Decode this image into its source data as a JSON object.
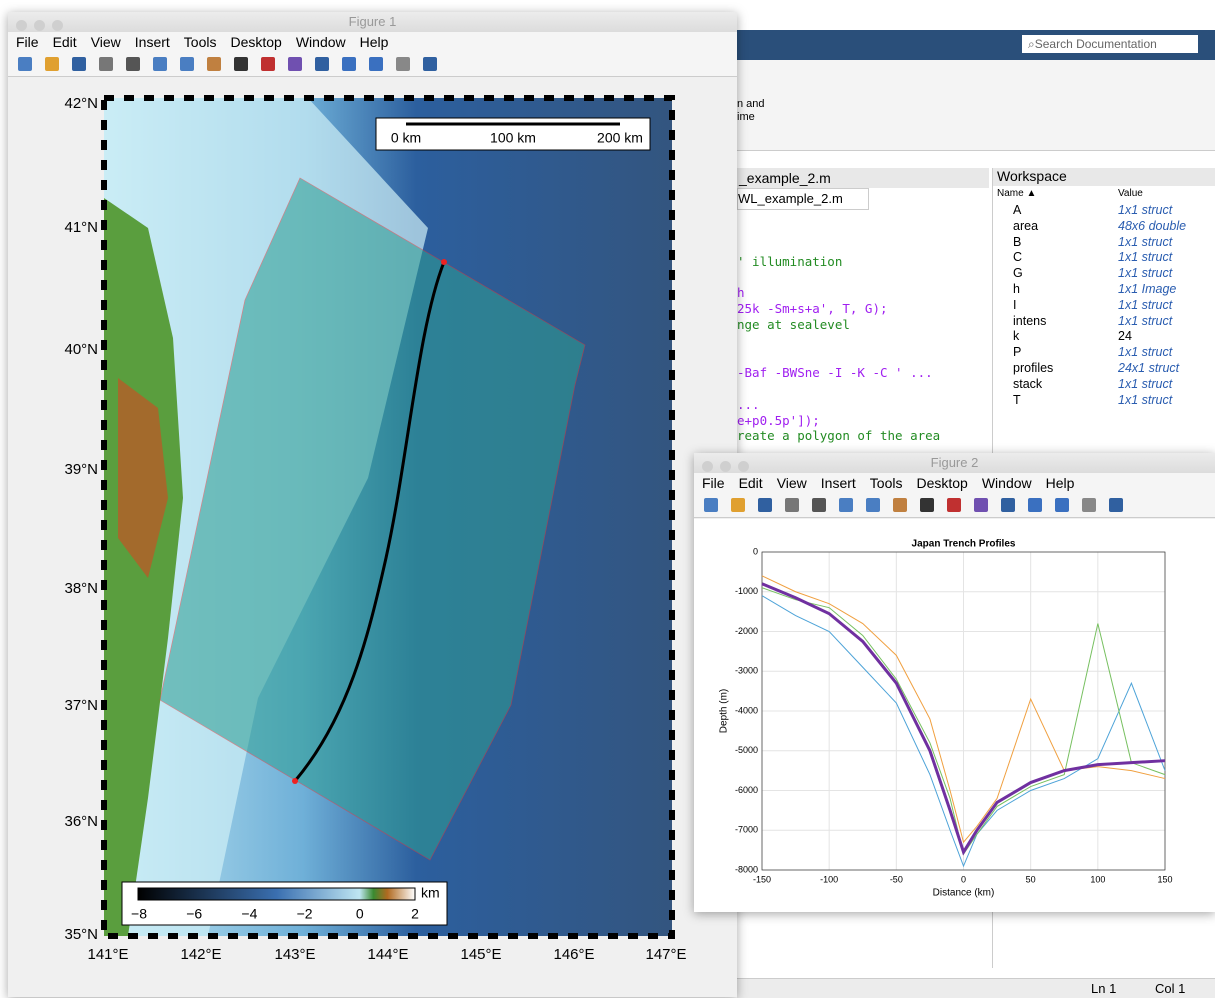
{
  "figure1": {
    "window_title": "Figure 1",
    "menu": [
      "File",
      "Edit",
      "View",
      "Insert",
      "Tools",
      "Desktop",
      "Window",
      "Help"
    ],
    "map": {
      "lat_labels": [
        "42°N",
        "41°N",
        "40°N",
        "39°N",
        "38°N",
        "37°N",
        "36°N",
        "35°N"
      ],
      "lon_labels": [
        "141°E",
        "142°E",
        "143°E",
        "144°E",
        "145°E",
        "146°E",
        "147°E"
      ],
      "scale_labels": [
        "0 km",
        "100 km",
        "200 km"
      ],
      "colorbar_labels": [
        "−8",
        "−6",
        "−4",
        "−2",
        "0",
        "2"
      ],
      "colorbar_unit": "km"
    }
  },
  "matlab": {
    "search": "Search Documentation",
    "ribbon": [
      "n and",
      "ime"
    ],
    "editor": {
      "panel_title": "_example_2.m",
      "tab": "WL_example_2.m",
      "code": [
        "' illumination",
        "h",
        "25k -Sm+s+a', T, G);",
        "nge at sealevel",
        "-Baf -BWSne -I -K -C ' ...",
        "...",
        "e+p0.5p']);",
        "reate a polygon of the area"
      ]
    },
    "workspace": {
      "title": "Workspace",
      "columns": [
        "Name ▲",
        "Value"
      ],
      "rows": [
        [
          "A",
          "1x1 struct"
        ],
        [
          "area",
          "48x6 double"
        ],
        [
          "B",
          "1x1 struct"
        ],
        [
          "C",
          "1x1 struct"
        ],
        [
          "G",
          "1x1 struct"
        ],
        [
          "h",
          "1x1 Image"
        ],
        [
          "I",
          "1x1 struct"
        ],
        [
          "intens",
          "1x1 struct"
        ],
        [
          "k",
          "24"
        ],
        [
          "P",
          "1x1 struct"
        ],
        [
          "profiles",
          "24x1 struct"
        ],
        [
          "stack",
          "1x1 struct"
        ],
        [
          "T",
          "1x1 struct"
        ]
      ]
    },
    "status": [
      "Ln  1",
      "Col  1"
    ]
  },
  "figure2": {
    "window_title": "Figure 2",
    "menu": [
      "File",
      "Edit",
      "View",
      "Insert",
      "Tools",
      "Desktop",
      "Window",
      "Help"
    ],
    "chart_data": {
      "type": "line",
      "title": "Japan Trench Profiles",
      "x_label": "Distance (km)",
      "y_label": "Depth (m)",
      "x": [
        -150,
        -125,
        -100,
        -75,
        -50,
        -25,
        -10,
        0,
        10,
        25,
        50,
        75,
        100,
        125,
        150
      ],
      "series": [
        {
          "color": "#4da3d8",
          "values": [
            -1100,
            -1600,
            -2000,
            -2900,
            -3800,
            -5600,
            -7000,
            -7900,
            -7100,
            -6500,
            -6000,
            -5700,
            -5200,
            -3300,
            -5500
          ],
          "width": 1
        },
        {
          "color": "#f0a040",
          "values": [
            -600,
            -1000,
            -1300,
            -1800,
            -2600,
            -4200,
            -6000,
            -7300,
            -6900,
            -6200,
            -3700,
            -5500,
            -5400,
            -5500,
            -5700
          ],
          "width": 1
        },
        {
          "color": "#77c060",
          "values": [
            -900,
            -1200,
            -1400,
            -2100,
            -3200,
            -4800,
            -6200,
            -7600,
            -7100,
            -6400,
            -5900,
            -5600,
            -1800,
            -5300,
            -5600
          ],
          "width": 1
        },
        {
          "color": "#7030a0",
          "values": [
            -800,
            -1150,
            -1550,
            -2250,
            -3300,
            -5000,
            -6500,
            -7550,
            -7000,
            -6300,
            -5800,
            -5500,
            -5350,
            -5300,
            -5250
          ],
          "width": 3
        }
      ],
      "xlim": [
        -150,
        150
      ],
      "xticks": [
        -150,
        -100,
        -50,
        0,
        50,
        100,
        150
      ],
      "ylim": [
        -8000,
        0
      ],
      "yticks": [
        -8000,
        -7000,
        -6000,
        -5000,
        -4000,
        -3000,
        -2000,
        -1000,
        0
      ],
      "grid": true
    }
  }
}
